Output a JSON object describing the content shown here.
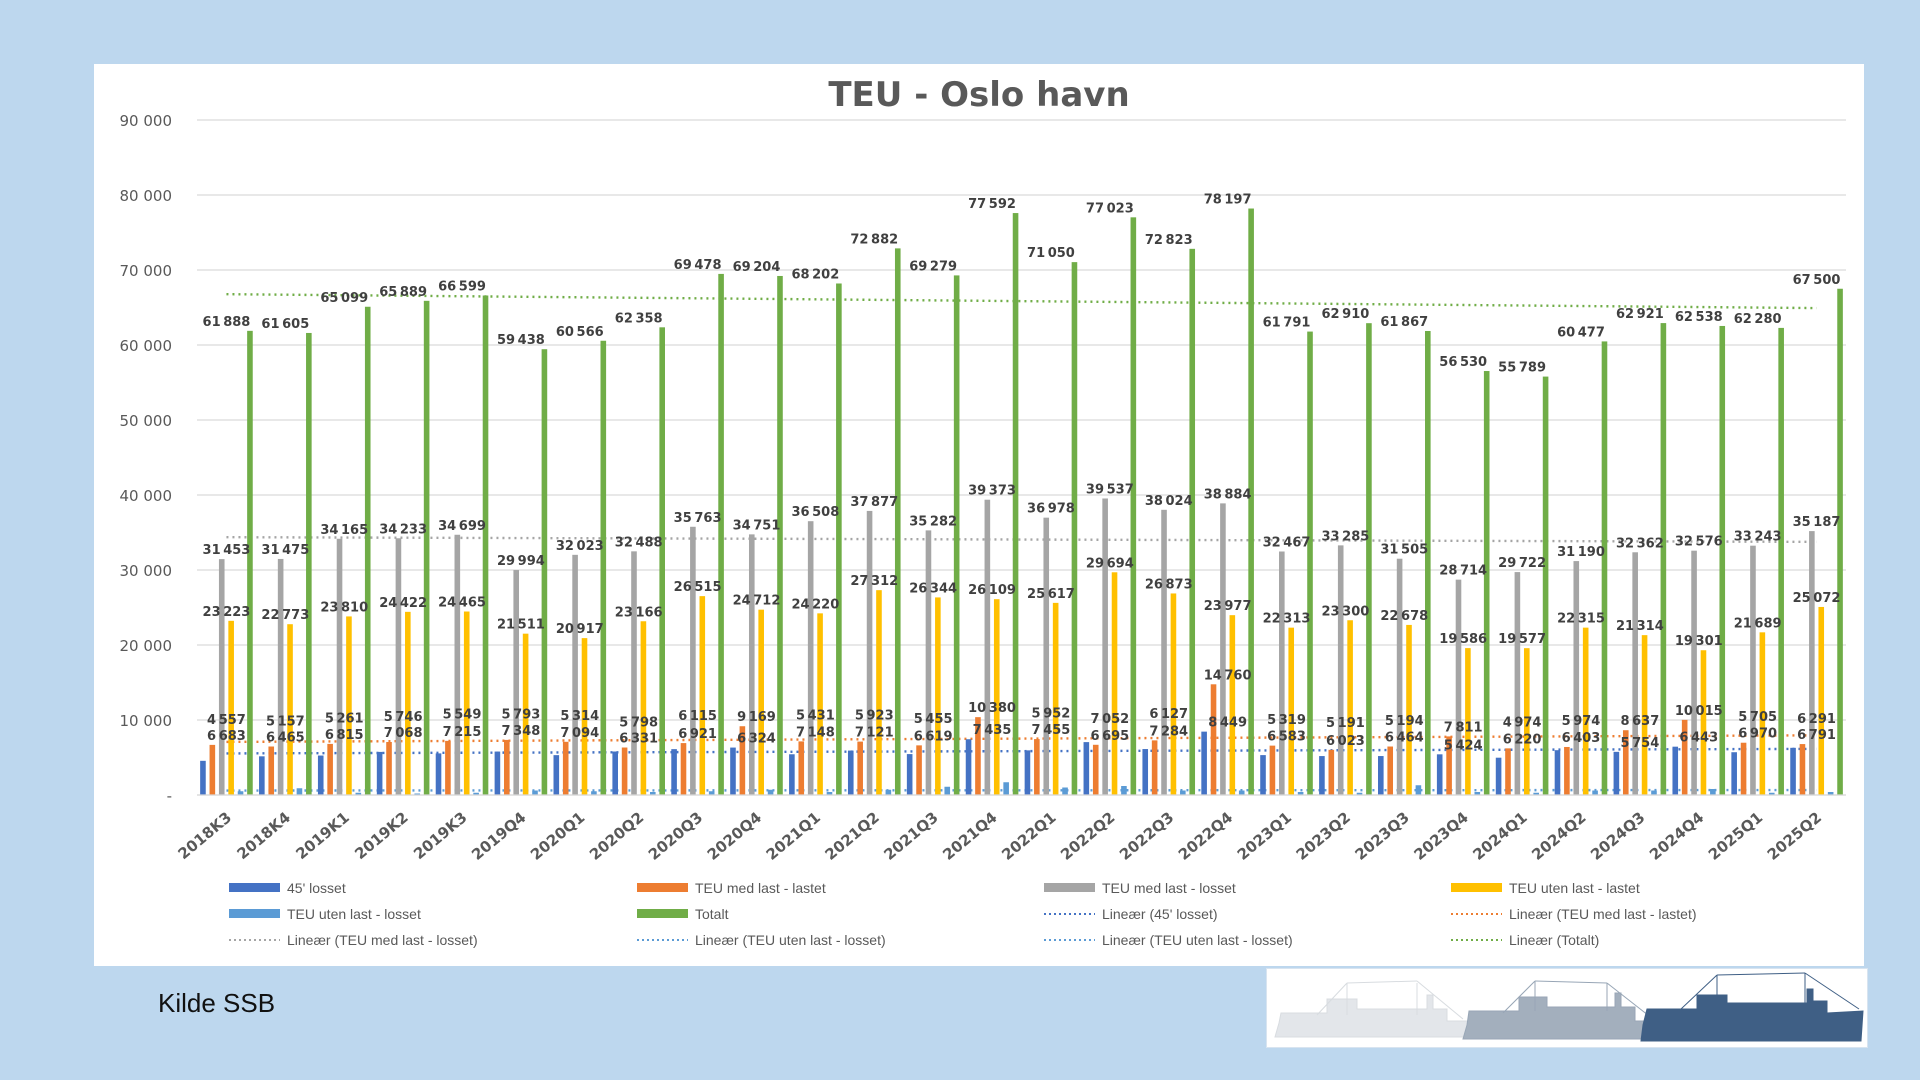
{
  "source_note": "Kilde SSB",
  "decor": {
    "ships": "ship-silhouettes-image"
  },
  "colors": {
    "s45": "#4472c4",
    "teu_med_lastet": "#ed7d31",
    "teu_med_losset": "#a5a5a5",
    "teu_uten_lastet": "#ffc000",
    "teu_uten_losset": "#5b9bd5",
    "totalt": "#70ad47",
    "background": "#bdd7ee"
  },
  "chart_data": {
    "type": "bar",
    "title": "TEU - Oslo havn",
    "xlabel": "",
    "ylabel": "",
    "ylim": [
      0,
      90000
    ],
    "yticks": [
      0,
      10000,
      20000,
      30000,
      40000,
      50000,
      60000,
      70000,
      80000,
      90000
    ],
    "ytick_labels": [
      "-",
      "10 000",
      "20 000",
      "30 000",
      "40 000",
      "50 000",
      "60 000",
      "70 000",
      "80 000",
      "90 000"
    ],
    "grid": true,
    "legend_position": "bottom",
    "categories": [
      "2018K3",
      "2018K4",
      "2019K1",
      "2019K2",
      "2019K3",
      "2019Q4",
      "2020Q1",
      "2020Q2",
      "2020Q3",
      "2020Q4",
      "2021Q1",
      "2021Q2",
      "2021Q3",
      "2021Q4",
      "2022Q1",
      "2022Q2",
      "2022Q3",
      "2022Q4",
      "2023Q1",
      "2023Q2",
      "2023Q3",
      "2023Q4",
      "2024Q1",
      "2024Q2",
      "2024Q3",
      "2024Q4",
      "2025Q1",
      "2025Q2"
    ],
    "series": [
      {
        "name": "45' losset",
        "color": "#4472c4",
        "labeled": true,
        "values": [
          4557,
          5157,
          5261,
          5746,
          5549,
          5793,
          5314,
          5798,
          6115,
          6324,
          5431,
          5923,
          5455,
          7435,
          5952,
          7052,
          6127,
          8449,
          5319,
          5191,
          5194,
          5424,
          4974,
          5974,
          5754,
          6443,
          5705,
          6291
        ]
      },
      {
        "name": "TEU med last - lastet",
        "color": "#ed7d31",
        "labeled": true,
        "values": [
          6683,
          6465,
          6815,
          7068,
          7215,
          7348,
          7094,
          6331,
          6921,
          9169,
          7148,
          7121,
          6619,
          10380,
          7455,
          6695,
          7284,
          14760,
          6583,
          6023,
          6464,
          7811,
          6220,
          6403,
          8637,
          10015,
          6970,
          6791
        ]
      },
      {
        "name": "TEU med last - losset",
        "color": "#a5a5a5",
        "labeled": true,
        "values": [
          31453,
          31475,
          34165,
          34233,
          34699,
          29994,
          32023,
          32488,
          35763,
          34751,
          36508,
          37877,
          35282,
          39373,
          36978,
          39537,
          38024,
          38884,
          32467,
          33285,
          31505,
          28714,
          29722,
          31190,
          32362,
          32576,
          33243,
          35187
        ]
      },
      {
        "name": "TEU uten last - lastet",
        "color": "#ffc000",
        "labeled": true,
        "values": [
          23223,
          22773,
          23810,
          24422,
          24465,
          21511,
          20917,
          23166,
          26515,
          24712,
          24220,
          27312,
          26344,
          26109,
          25617,
          29694,
          26873,
          23977,
          22313,
          23300,
          22678,
          19586,
          19577,
          22315,
          21314,
          19301,
          21689,
          25072
        ]
      },
      {
        "name": "TEU uten last - losset",
        "color": "#5b9bd5",
        "labeled": false,
        "values": [
          500,
          900,
          300,
          200,
          300,
          600,
          500,
          400,
          500,
          700,
          400,
          700,
          1100,
          1700,
          1000,
          1200,
          600,
          600,
          400,
          300,
          1300,
          400,
          300,
          600,
          600,
          800,
          300,
          400
        ]
      },
      {
        "name": "Totalt",
        "color": "#70ad47",
        "labeled": true,
        "values": [
          61888,
          61605,
          65099,
          65889,
          66599,
          59438,
          60566,
          62358,
          69478,
          69204,
          68202,
          72882,
          69279,
          77592,
          71050,
          77023,
          72823,
          78197,
          61791,
          62910,
          61867,
          56530,
          55789,
          60477,
          62921,
          62538,
          62280,
          67500
        ]
      }
    ],
    "trendlines": [
      {
        "name": "Lineær (45' losset)",
        "series": "45' losset",
        "color": "#4472c4"
      },
      {
        "name": "Lineær (TEU med last - lastet)",
        "series": "TEU med last - lastet",
        "color": "#ed7d31"
      },
      {
        "name": "Lineær (TEU med last - losset)",
        "series": "TEU med last - losset",
        "color": "#a5a5a5"
      },
      {
        "name": "Lineær (TEU uten last - losset)",
        "series": "TEU uten last - losset",
        "color": "#5b9bd5"
      },
      {
        "name": "Lineær (TEU uten last - losset)",
        "series": "TEU uten last - losset",
        "color": "#5b9bd5"
      },
      {
        "name": "Lineær (Totalt)",
        "series": "Totalt",
        "color": "#70ad47"
      }
    ],
    "legend": [
      {
        "label": "45' losset",
        "kind": "bar",
        "color": "#4472c4"
      },
      {
        "label": "TEU med last - lastet",
        "kind": "bar",
        "color": "#ed7d31"
      },
      {
        "label": "TEU med last - losset",
        "kind": "bar",
        "color": "#a5a5a5"
      },
      {
        "label": "TEU uten last - lastet",
        "kind": "bar",
        "color": "#ffc000"
      },
      {
        "label": "TEU uten last - losset",
        "kind": "bar",
        "color": "#5b9bd5"
      },
      {
        "label": "Totalt",
        "kind": "bar",
        "color": "#70ad47"
      },
      {
        "label": "Lineær (45' losset)",
        "kind": "dots",
        "color": "#4472c4"
      },
      {
        "label": "Lineær (TEU med last - lastet)",
        "kind": "dots",
        "color": "#ed7d31"
      },
      {
        "label": "Lineær (TEU med last - losset)",
        "kind": "dots",
        "color": "#a5a5a5"
      },
      {
        "label": "Lineær (TEU uten last - losset)",
        "kind": "dots",
        "color": "#5b9bd5"
      },
      {
        "label": "Lineær (TEU uten last - losset)",
        "kind": "dots",
        "color": "#5b9bd5"
      },
      {
        "label": "Lineær (Totalt)",
        "kind": "dots",
        "color": "#70ad47"
      }
    ]
  }
}
